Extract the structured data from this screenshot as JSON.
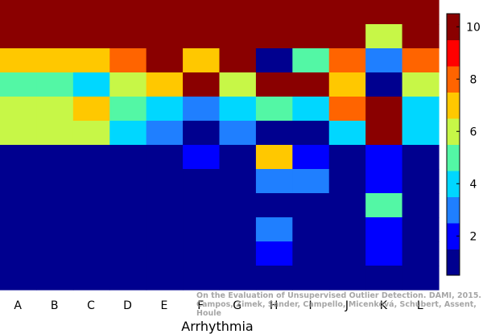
{
  "chart_data": {
    "type": "heatmap",
    "title": "",
    "xlabel": "Arrhythmia",
    "ylabel": "",
    "categories": [
      "A",
      "B",
      "C",
      "D",
      "E",
      "F",
      "G",
      "H",
      "I",
      "J",
      "K",
      "L"
    ],
    "rows": 12,
    "values": [
      [
        10,
        10,
        10,
        10,
        10,
        10,
        10,
        10,
        10,
        10,
        10,
        10
      ],
      [
        10,
        10,
        10,
        10,
        10,
        10,
        10,
        10,
        10,
        10,
        6,
        10
      ],
      [
        7,
        7,
        7,
        8,
        10,
        7,
        10,
        1,
        5,
        8,
        3,
        8
      ],
      [
        5,
        5,
        4,
        6,
        7,
        10,
        6,
        10,
        10,
        7,
        1,
        6
      ],
      [
        6,
        6,
        7,
        5,
        4,
        3,
        4,
        5,
        4,
        8,
        10,
        4
      ],
      [
        6,
        6,
        6,
        4,
        3,
        1,
        3,
        1,
        1,
        4,
        10,
        4
      ],
      [
        1,
        1,
        1,
        1,
        1,
        2,
        1,
        7,
        2,
        1,
        2,
        1
      ],
      [
        1,
        1,
        1,
        1,
        1,
        1,
        1,
        3,
        3,
        1,
        2,
        1
      ],
      [
        1,
        1,
        1,
        1,
        1,
        1,
        1,
        1,
        1,
        1,
        5,
        1
      ],
      [
        1,
        1,
        1,
        1,
        1,
        1,
        1,
        3,
        1,
        1,
        2,
        1
      ],
      [
        1,
        1,
        1,
        1,
        1,
        1,
        1,
        2,
        1,
        1,
        2,
        1
      ],
      [
        1,
        1,
        1,
        1,
        1,
        1,
        1,
        1,
        1,
        1,
        1,
        1
      ]
    ],
    "colorbar": {
      "range": [
        0.5,
        10.5
      ],
      "ticks": [
        2,
        4,
        6,
        8,
        10
      ],
      "colors": [
        "#00008f",
        "#0000ff",
        "#1f7fff",
        "#00d7ff",
        "#53f7a5",
        "#c7f747",
        "#ffc800",
        "#ff6400",
        "#ff0000",
        "#8a0000"
      ]
    },
    "grid": false,
    "legend": "colorbar-right"
  },
  "watermark": {
    "line1": "On the Evaluation of Unsupervised Outlier Detection. DAMI, 2015.",
    "line2": "Campos, Zimek, Sander, Campello, Micenková, Schubert, Assent, Houle"
  }
}
